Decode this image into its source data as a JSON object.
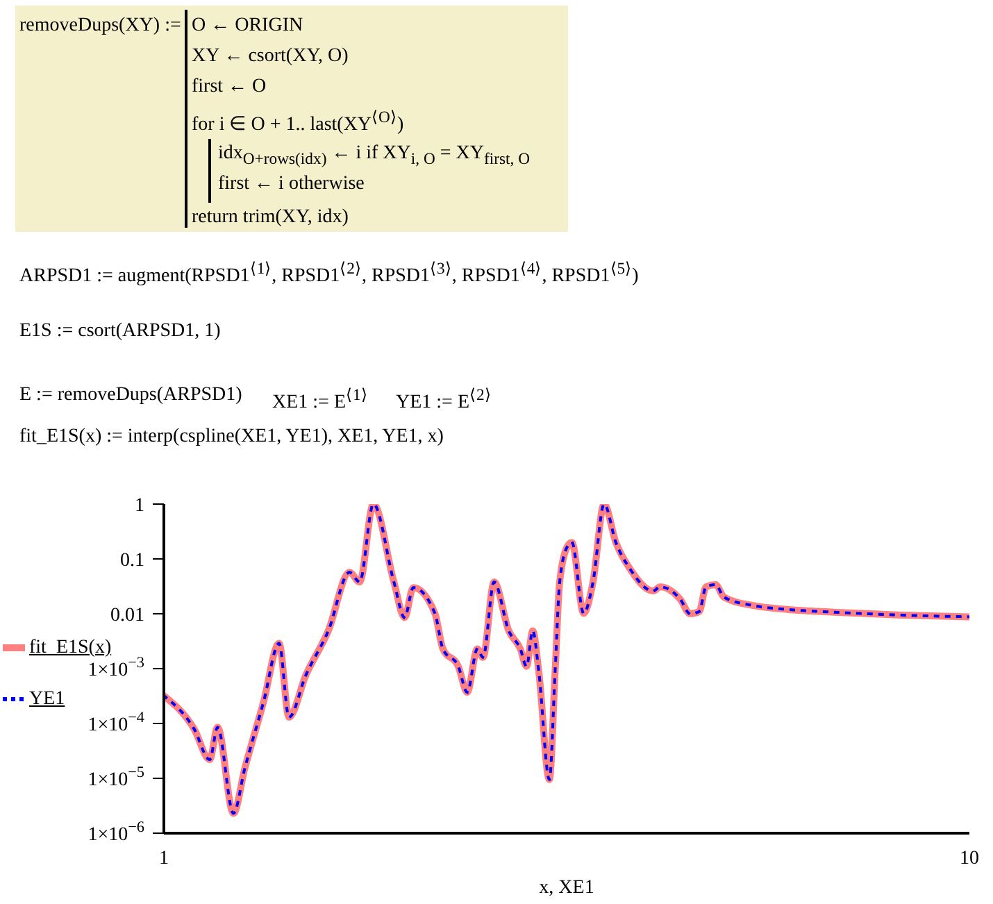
{
  "chart_data": {
    "type": "line",
    "x": [
      1,
      1.09,
      1.14,
      1.166,
      1.22,
      1.26,
      1.33,
      1.39,
      1.43,
      1.5,
      1.6,
      1.7,
      1.75,
      1.82,
      1.93,
      1.99,
      2.04,
      2.17,
      2.22,
      2.32,
      2.38,
      2.45,
      2.49,
      2.57,
      2.68,
      2.77,
      2.82,
      2.87,
      2.92,
      3.01,
      3.06,
      3.1,
      3.17,
      3.21,
      3.32,
      3.41,
      3.52,
      3.64,
      3.79,
      4.05,
      4.13,
      4.38,
      4.5,
      4.62,
      4.71,
      4.84,
      4.96,
      5.41,
      5.94,
      6.78,
      8.16,
      10
    ],
    "series": [
      {
        "name": "fit_E1S(x)",
        "color": "#ff8080",
        "line_style": "solid",
        "values": [
          0.00032,
          8e-05,
          2.2e-05,
          8.5e-05,
          2.3e-06,
          1.5e-05,
          0.00025,
          0.0029,
          0.00013,
          0.00075,
          0.0049,
          0.057,
          0.038,
          1,
          0.038,
          0.0085,
          0.03,
          0.0102,
          0.0023,
          0.0011,
          0.00037,
          0.0023,
          0.0016,
          0.038,
          0.0049,
          0.0023,
          0.0011,
          0.0049,
          0.0009,
          9.5e-06,
          0.0009,
          0.038,
          0.17,
          0.2,
          0.0102,
          0.038,
          1,
          0.2,
          0.066,
          0.026,
          0.031,
          0.018,
          0.01,
          0.011,
          0.031,
          0.034,
          0.02,
          0.014,
          0.012,
          0.0107,
          0.0095,
          0.0088
        ]
      },
      {
        "name": "YE1",
        "color": "#0000ff",
        "line_style": "dotted",
        "values": [
          0.00032,
          8e-05,
          2.2e-05,
          8.5e-05,
          2.3e-06,
          1.5e-05,
          0.00025,
          0.0029,
          0.00013,
          0.00075,
          0.0049,
          0.057,
          0.038,
          1,
          0.038,
          0.0085,
          0.03,
          0.0102,
          0.0023,
          0.0011,
          0.00037,
          0.0023,
          0.0016,
          0.038,
          0.0049,
          0.0023,
          0.0011,
          0.0049,
          0.0009,
          9.5e-06,
          0.0009,
          0.038,
          0.17,
          0.2,
          0.0102,
          0.038,
          1,
          0.2,
          0.066,
          0.026,
          0.031,
          0.018,
          0.01,
          0.011,
          0.031,
          0.034,
          0.02,
          0.014,
          0.012,
          0.0107,
          0.0095,
          0.0088
        ]
      }
    ],
    "xlabel": "x, XE1",
    "log": "xy",
    "xlim": [
      1,
      10
    ],
    "xticks": [
      1,
      10
    ],
    "ylim": [
      1e-06,
      1
    ],
    "yticks": [
      {
        "value": 1,
        "label": "1"
      },
      {
        "value": 0.1,
        "label": "0.1"
      },
      {
        "value": 0.01,
        "label": "0.01"
      },
      {
        "value": 0.001,
        "label": "1×10$^{−3}$"
      },
      {
        "value": 0.0001,
        "label": "1×10$^{−4}$"
      },
      {
        "value": 1e-05,
        "label": "1×10$^{−5}$"
      },
      {
        "value": 1e-06,
        "label": "1×10$^{−6}$"
      }
    ],
    "legend": "left",
    "marker": "none",
    "annotations": [
      "removeDups(XY) :=",
      "O ← ORIGIN",
      "XY ← csort(XY, O)",
      "first ← O",
      "for  i ∈ O + 1.. last(XY$^{⟨O⟩}$)",
      "idx$_{O+rows(idx)}$ ← i  if  XY$_{i, O}$ = XY$_{first, O}$",
      "first ← i  otherwise",
      "return  trim(XY, idx)",
      "ARPSD1 := augment(RPSD1$^{⟨1⟩}$, RPSD1$^{⟨2⟩}$, RPSD1$^{⟨3⟩}$, RPSD1$^{⟨4⟩}$, RPSD1$^{⟨5⟩}$)",
      "E1S := csort(ARPSD1, 1)",
      "E := removeDups(ARPSD1)",
      "XE1 := E$^{⟨1⟩}$",
      "YE1 := E$^{⟨2⟩}$",
      "fit_E1S(x) := interp(cspline(XE1, YE1), XE1, YE1, x)"
    ]
  }
}
